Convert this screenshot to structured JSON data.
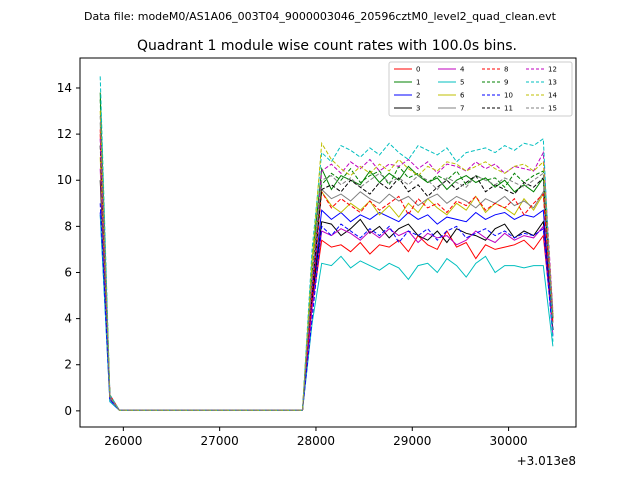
{
  "figure": {
    "suptitle": "Data file: modeM0/AS1A06_003T04_9000003046_20596cztM0_level2_quad_clean.evt"
  },
  "chart_data": {
    "type": "line",
    "title": "Quadrant 1 module wise count rates with 100.0s bins.",
    "xlabel": "",
    "ylabel": "",
    "x_offset_label": "+3.013e8",
    "xlim": [
      25550,
      30700
    ],
    "ylim": [
      -0.7,
      15.3
    ],
    "xticks": [
      26000,
      27000,
      28000,
      29000,
      30000
    ],
    "yticks": [
      0,
      2,
      4,
      6,
      8,
      10,
      12,
      14
    ],
    "legend_position": "upper right",
    "legend_columns": 4,
    "x": [
      25760,
      25860,
      25960,
      26060,
      26160,
      26260,
      26360,
      26460,
      26560,
      26660,
      26760,
      26860,
      26960,
      27060,
      27160,
      27260,
      27360,
      27460,
      27560,
      27660,
      27760,
      27860,
      27960,
      28060,
      28160,
      28260,
      28360,
      28460,
      28560,
      28660,
      28760,
      28860,
      28960,
      29060,
      29160,
      29260,
      29360,
      29460,
      29560,
      29660,
      29760,
      29860,
      29960,
      30060,
      30160,
      30260,
      30360,
      30460
    ],
    "series": [
      {
        "name": "0",
        "color": "#ff0000",
        "dash": "solid",
        "values": [
          12.0,
          0.7,
          0.02,
          0.02,
          0.02,
          0.02,
          0.02,
          0.02,
          0.02,
          0.02,
          0.02,
          0.02,
          0.02,
          0.02,
          0.02,
          0.02,
          0.02,
          0.02,
          0.02,
          0.02,
          0.02,
          0.02,
          4.5,
          7.4,
          7.1,
          7.2,
          6.9,
          7.3,
          6.8,
          7.2,
          7.1,
          7.4,
          6.9,
          7.6,
          7.2,
          7.0,
          7.8,
          7.1,
          7.3,
          6.6,
          7.2,
          7.0,
          7.1,
          7.2,
          7.4,
          7.0,
          7.6,
          3.5
        ]
      },
      {
        "name": "1",
        "color": "#008000",
        "dash": "solid",
        "values": [
          13.8,
          0.5,
          0.02,
          0.02,
          0.02,
          0.02,
          0.02,
          0.02,
          0.02,
          0.02,
          0.02,
          0.02,
          0.02,
          0.02,
          0.02,
          0.02,
          0.02,
          0.02,
          0.02,
          0.02,
          0.02,
          0.02,
          6.5,
          10.5,
          9.6,
          10.2,
          10.0,
          9.8,
          10.4,
          9.9,
          10.3,
          10.0,
          10.6,
          10.2,
          9.9,
          10.1,
          9.6,
          10.0,
          10.2,
          9.9,
          10.1,
          9.7,
          10.0,
          9.5,
          9.8,
          9.5,
          10.1,
          4.0
        ]
      },
      {
        "name": "2",
        "color": "#0000ff",
        "dash": "solid",
        "values": [
          8.6,
          0.4,
          0.02,
          0.02,
          0.02,
          0.02,
          0.02,
          0.02,
          0.02,
          0.02,
          0.02,
          0.02,
          0.02,
          0.02,
          0.02,
          0.02,
          0.02,
          0.02,
          0.02,
          0.02,
          0.02,
          0.02,
          5.0,
          8.7,
          8.3,
          8.6,
          8.2,
          8.5,
          8.3,
          8.6,
          8.4,
          8.2,
          8.6,
          8.3,
          8.5,
          8.1,
          8.4,
          8.3,
          8.2,
          8.6,
          8.3,
          8.5,
          8.6,
          8.3,
          8.5,
          8.4,
          8.7,
          3.5
        ]
      },
      {
        "name": "3",
        "color": "#000000",
        "dash": "solid",
        "values": [
          10.0,
          0.6,
          0.02,
          0.02,
          0.02,
          0.02,
          0.02,
          0.02,
          0.02,
          0.02,
          0.02,
          0.02,
          0.02,
          0.02,
          0.02,
          0.02,
          0.02,
          0.02,
          0.02,
          0.02,
          0.02,
          0.02,
          4.8,
          8.2,
          8.1,
          7.6,
          7.9,
          8.3,
          7.7,
          8.0,
          7.5,
          7.9,
          8.1,
          7.6,
          7.4,
          7.8,
          7.3,
          7.9,
          7.7,
          7.6,
          7.4,
          7.9,
          8.1,
          7.5,
          7.8,
          7.6,
          8.2,
          3.5
        ]
      },
      {
        "name": "4",
        "color": "#bf00bf",
        "dash": "solid",
        "values": [
          10.5,
          0.5,
          0.02,
          0.02,
          0.02,
          0.02,
          0.02,
          0.02,
          0.02,
          0.02,
          0.02,
          0.02,
          0.02,
          0.02,
          0.02,
          0.02,
          0.02,
          0.02,
          0.02,
          0.02,
          0.02,
          0.02,
          4.5,
          7.8,
          7.6,
          7.9,
          7.7,
          7.4,
          7.8,
          7.5,
          7.9,
          7.6,
          7.8,
          7.3,
          7.7,
          7.5,
          7.6,
          7.2,
          7.4,
          7.8,
          7.5,
          7.3,
          7.7,
          7.4,
          7.6,
          7.5,
          8.0,
          3.3
        ]
      },
      {
        "name": "5",
        "color": "#00bfbf",
        "dash": "solid",
        "values": [
          8.5,
          0.4,
          0.02,
          0.02,
          0.02,
          0.02,
          0.02,
          0.02,
          0.02,
          0.02,
          0.02,
          0.02,
          0.02,
          0.02,
          0.02,
          0.02,
          0.02,
          0.02,
          0.02,
          0.02,
          0.02,
          0.02,
          3.8,
          6.4,
          6.3,
          6.7,
          6.2,
          6.5,
          6.3,
          6.1,
          6.4,
          6.2,
          5.7,
          6.3,
          6.4,
          6.0,
          6.6,
          6.3,
          5.8,
          6.4,
          6.7,
          6.0,
          6.3,
          6.3,
          6.2,
          6.3,
          6.3,
          2.8
        ]
      },
      {
        "name": "6",
        "color": "#bfbf00",
        "dash": "solid",
        "values": [
          11.0,
          0.6,
          0.02,
          0.02,
          0.02,
          0.02,
          0.02,
          0.02,
          0.02,
          0.02,
          0.02,
          0.02,
          0.02,
          0.02,
          0.02,
          0.02,
          0.02,
          0.02,
          0.02,
          0.02,
          0.02,
          0.02,
          6.5,
          9.5,
          8.9,
          8.6,
          9.0,
          8.7,
          9.1,
          8.5,
          8.9,
          8.4,
          9.0,
          8.6,
          9.2,
          8.8,
          8.5,
          9.0,
          8.7,
          9.3,
          8.6,
          9.0,
          8.8,
          8.5,
          9.2,
          8.7,
          9.4,
          4.0
        ]
      },
      {
        "name": "7",
        "color": "#808080",
        "dash": "solid",
        "values": [
          12.5,
          0.6,
          0.02,
          0.02,
          0.02,
          0.02,
          0.02,
          0.02,
          0.02,
          0.02,
          0.02,
          0.02,
          0.02,
          0.02,
          0.02,
          0.02,
          0.02,
          0.02,
          0.02,
          0.02,
          0.02,
          0.02,
          5.5,
          9.6,
          9.2,
          9.4,
          9.1,
          9.5,
          9.2,
          9.0,
          9.4,
          9.1,
          9.3,
          8.9,
          9.2,
          9.4,
          9.0,
          9.3,
          9.1,
          8.8,
          9.2,
          9.0,
          9.3,
          8.9,
          9.1,
          8.8,
          9.5,
          3.8
        ]
      },
      {
        "name": "8",
        "color": "#ff0000",
        "dash": "dashed",
        "values": [
          12.2,
          0.6,
          0.02,
          0.02,
          0.02,
          0.02,
          0.02,
          0.02,
          0.02,
          0.02,
          0.02,
          0.02,
          0.02,
          0.02,
          0.02,
          0.02,
          0.02,
          0.02,
          0.02,
          0.02,
          0.02,
          0.02,
          5.0,
          9.5,
          8.8,
          9.2,
          8.9,
          8.6,
          9.1,
          8.7,
          9.0,
          9.3,
          8.5,
          9.2,
          8.8,
          9.0,
          8.6,
          9.1,
          8.9,
          9.3,
          8.7,
          9.0,
          8.8,
          9.2,
          8.5,
          9.0,
          9.4,
          3.8
        ]
      },
      {
        "name": "9",
        "color": "#008000",
        "dash": "dashed",
        "values": [
          13.5,
          0.6,
          0.02,
          0.02,
          0.02,
          0.02,
          0.02,
          0.02,
          0.02,
          0.02,
          0.02,
          0.02,
          0.02,
          0.02,
          0.02,
          0.02,
          0.02,
          0.02,
          0.02,
          0.02,
          0.02,
          0.02,
          6.0,
          9.8,
          10.3,
          10.0,
          10.5,
          9.9,
          10.2,
          10.4,
          9.8,
          10.6,
          10.1,
          10.3,
          9.9,
          10.2,
          10.0,
          10.4,
          9.8,
          10.2,
          10.0,
          10.1,
          9.7,
          10.3,
          9.9,
          10.2,
          10.4,
          4.2
        ]
      },
      {
        "name": "10",
        "color": "#0000ff",
        "dash": "dashed",
        "values": [
          9.0,
          0.5,
          0.02,
          0.02,
          0.02,
          0.02,
          0.02,
          0.02,
          0.02,
          0.02,
          0.02,
          0.02,
          0.02,
          0.02,
          0.02,
          0.02,
          0.02,
          0.02,
          0.02,
          0.02,
          0.02,
          0.02,
          4.0,
          8.0,
          7.6,
          8.1,
          7.8,
          7.5,
          7.9,
          7.6,
          8.0,
          7.3,
          7.8,
          7.6,
          7.9,
          7.4,
          7.8,
          8.0,
          7.5,
          7.7,
          7.9,
          7.6,
          7.8,
          7.5,
          7.7,
          7.6,
          7.9,
          3.2
        ]
      },
      {
        "name": "11",
        "color": "#000000",
        "dash": "dashed",
        "values": [
          11.5,
          0.6,
          0.02,
          0.02,
          0.02,
          0.02,
          0.02,
          0.02,
          0.02,
          0.02,
          0.02,
          0.02,
          0.02,
          0.02,
          0.02,
          0.02,
          0.02,
          0.02,
          0.02,
          0.02,
          0.02,
          0.02,
          5.3,
          9.6,
          9.8,
          9.5,
          10.0,
          9.7,
          9.4,
          9.9,
          9.6,
          10.1,
          9.5,
          9.8,
          9.3,
          9.7,
          10.0,
          9.6,
          9.9,
          10.2,
          9.5,
          9.8,
          9.6,
          9.4,
          9.9,
          9.7,
          10.1,
          4.0
        ]
      },
      {
        "name": "12",
        "color": "#bf00bf",
        "dash": "dashed",
        "values": [
          11.8,
          0.6,
          0.02,
          0.02,
          0.02,
          0.02,
          0.02,
          0.02,
          0.02,
          0.02,
          0.02,
          0.02,
          0.02,
          0.02,
          0.02,
          0.02,
          0.02,
          0.02,
          0.02,
          0.02,
          0.02,
          0.02,
          5.5,
          10.4,
          10.7,
          10.3,
          10.8,
          10.5,
          10.9,
          10.4,
          10.7,
          10.6,
          10.9,
          10.5,
          10.8,
          10.3,
          10.7,
          10.6,
          10.4,
          10.8,
          10.5,
          10.7,
          10.3,
          10.6,
          10.5,
          10.4,
          11.2,
          4.3
        ]
      },
      {
        "name": "13",
        "color": "#00bfbf",
        "dash": "dashed",
        "values": [
          14.5,
          0.7,
          0.02,
          0.02,
          0.02,
          0.02,
          0.02,
          0.02,
          0.02,
          0.02,
          0.02,
          0.02,
          0.02,
          0.02,
          0.02,
          0.02,
          0.02,
          0.02,
          0.02,
          0.02,
          0.02,
          0.02,
          7.0,
          11.2,
          10.8,
          11.5,
          11.3,
          11.0,
          11.4,
          11.1,
          11.6,
          11.2,
          10.9,
          11.5,
          11.3,
          11.1,
          11.4,
          10.8,
          11.2,
          11.3,
          11.4,
          11.2,
          11.5,
          11.3,
          11.6,
          11.5,
          11.8,
          3.0
        ]
      },
      {
        "name": "14",
        "color": "#bfbf00",
        "dash": "dashed",
        "values": [
          13.0,
          0.6,
          0.02,
          0.02,
          0.02,
          0.02,
          0.02,
          0.02,
          0.02,
          0.02,
          0.02,
          0.02,
          0.02,
          0.02,
          0.02,
          0.02,
          0.02,
          0.02,
          0.02,
          0.02,
          0.02,
          0.02,
          6.5,
          11.6,
          10.9,
          10.5,
          10.2,
          10.6,
          10.3,
          10.7,
          10.4,
          10.9,
          10.5,
          10.2,
          10.6,
          10.4,
          10.8,
          10.7,
          10.4,
          10.6,
          10.8,
          10.5,
          10.3,
          10.6,
          10.7,
          10.4,
          10.8,
          4.1
        ]
      },
      {
        "name": "15",
        "color": "#808080",
        "dash": "dashed",
        "values": [
          12.8,
          0.6,
          0.02,
          0.02,
          0.02,
          0.02,
          0.02,
          0.02,
          0.02,
          0.02,
          0.02,
          0.02,
          0.02,
          0.02,
          0.02,
          0.02,
          0.02,
          0.02,
          0.02,
          0.02,
          0.02,
          0.02,
          5.8,
          10.0,
          10.2,
          9.8,
          10.1,
          9.7,
          10.0,
          10.3,
          9.9,
          10.1,
          9.8,
          10.2,
          10.0,
          9.6,
          10.1,
          9.9,
          9.7,
          10.2,
          10.0,
          9.8,
          10.1,
          9.9,
          9.7,
          10.0,
          10.3,
          4.0
        ]
      }
    ]
  }
}
